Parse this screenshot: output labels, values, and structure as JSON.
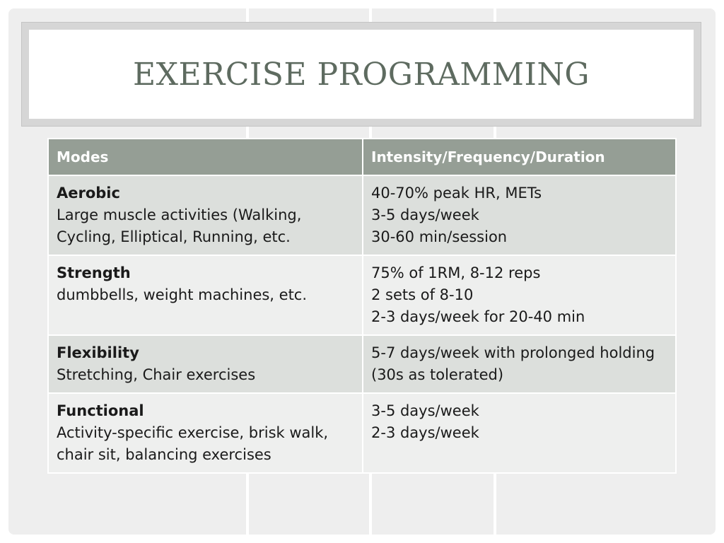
{
  "slide": {
    "title": "EXERCISE PROGRAMMING"
  },
  "table": {
    "headers": [
      "Modes",
      "Intensity/Frequency/Duration"
    ],
    "rows": [
      {
        "mode": "Aerobic",
        "description": "Large muscle activities (Walking, Cycling, Elliptical, Running, etc.",
        "details": [
          "40-70% peak HR, METs",
          "3-5 days/week",
          "30-60 min/session"
        ]
      },
      {
        "mode": "Strength",
        "description": "dumbbells, weight machines, etc.",
        "details": [
          "75% of 1RM, 8-12 reps",
          "2 sets of 8-10",
          "2-3 days/week for 20-40 min"
        ]
      },
      {
        "mode": "Flexibility",
        "description": "Stretching, Chair exercises",
        "details": [
          "5-7 days/week with prolonged holding (30s as tolerated)"
        ]
      },
      {
        "mode": "Functional",
        "description": "Activity-specific exercise, brisk walk, chair sit, balancing exercises",
        "details": [
          "3-5 days/week",
          "2-3 days/week"
        ]
      }
    ]
  },
  "colors": {
    "title_text": "#5e6b60",
    "header_bg": "#959e95",
    "row_dark": "#dcdfdc",
    "row_light": "#eeefee"
  }
}
